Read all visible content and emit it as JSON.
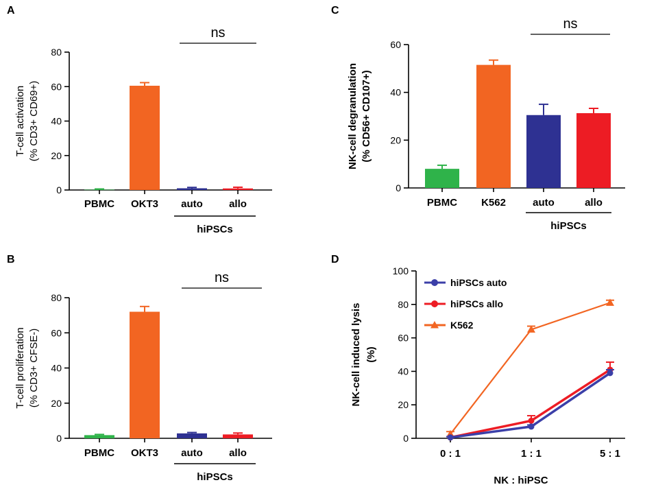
{
  "chart_data": [
    {
      "panel": "A",
      "type": "bar",
      "ylabel": [
        "T-cell activation",
        "(% CD3+ CD69+)"
      ],
      "ylim": [
        0,
        80
      ],
      "yticks": [
        0,
        20,
        40,
        60,
        80
      ],
      "categories": [
        "PBMC",
        "OKT3",
        "auto",
        "allo"
      ],
      "values": [
        0.2,
        60.5,
        1.0,
        0.9
      ],
      "errors": [
        0.4,
        1.8,
        0.5,
        0.7
      ],
      "colors": [
        "#2fb34a",
        "#f26522",
        "#2e3192",
        "#ed1c24"
      ],
      "group_label": "hiPSCs",
      "significance": "ns"
    },
    {
      "panel": "B",
      "type": "bar",
      "ylabel": [
        "T-cell proliferation",
        "(% CD3+ CFSE-)"
      ],
      "ylim": [
        0,
        80
      ],
      "yticks": [
        0,
        20,
        40,
        60,
        80
      ],
      "categories": [
        "PBMC",
        "OKT3",
        "auto",
        "allo"
      ],
      "values": [
        1.8,
        72.0,
        2.8,
        2.2
      ],
      "errors": [
        0.4,
        3.0,
        0.5,
        0.8
      ],
      "colors": [
        "#2fb34a",
        "#f26522",
        "#2e3192",
        "#ed1c24"
      ],
      "group_label": "hiPSCs",
      "significance": "ns"
    },
    {
      "panel": "C",
      "type": "bar",
      "ylabel": [
        "NK-cell degranulation",
        "(% CD56+ CD107+)"
      ],
      "ylim": [
        0,
        60
      ],
      "yticks": [
        0,
        20,
        40,
        60
      ],
      "categories": [
        "PBMC",
        "K562",
        "auto",
        "allo"
      ],
      "values": [
        8.0,
        51.5,
        30.5,
        31.3
      ],
      "errors": [
        1.5,
        2.0,
        4.5,
        2.0
      ],
      "colors": [
        "#2fb34a",
        "#f26522",
        "#2e3192",
        "#ed1c24"
      ],
      "group_label": "hiPSCs",
      "significance": "ns"
    },
    {
      "panel": "D",
      "type": "line",
      "ylabel": [
        "NK-cell induced lysis",
        "(%)"
      ],
      "xlabel": "NK : hiPSC",
      "ylim": [
        0,
        100
      ],
      "yticks": [
        0,
        20,
        40,
        60,
        80,
        100
      ],
      "categories": [
        "0 : 1",
        "1 : 1",
        "5 : 1"
      ],
      "series": [
        {
          "name": "hiPSCs auto",
          "values": [
            0.5,
            7.0,
            39.0
          ],
          "errors": [
            0.5,
            1.0,
            2.0
          ],
          "color": "#3b3fa8",
          "marker": "circle"
        },
        {
          "name": "hiPSCs allo",
          "values": [
            0.5,
            10.5,
            41.0
          ],
          "errors": [
            0.5,
            3.0,
            4.5
          ],
          "color": "#ed1c24",
          "marker": "circle"
        },
        {
          "name": "K562",
          "values": [
            2.5,
            65.0,
            81.0
          ],
          "errors": [
            1.5,
            2.0,
            1.5
          ],
          "color": "#f26522",
          "marker": "triangle"
        }
      ]
    }
  ]
}
